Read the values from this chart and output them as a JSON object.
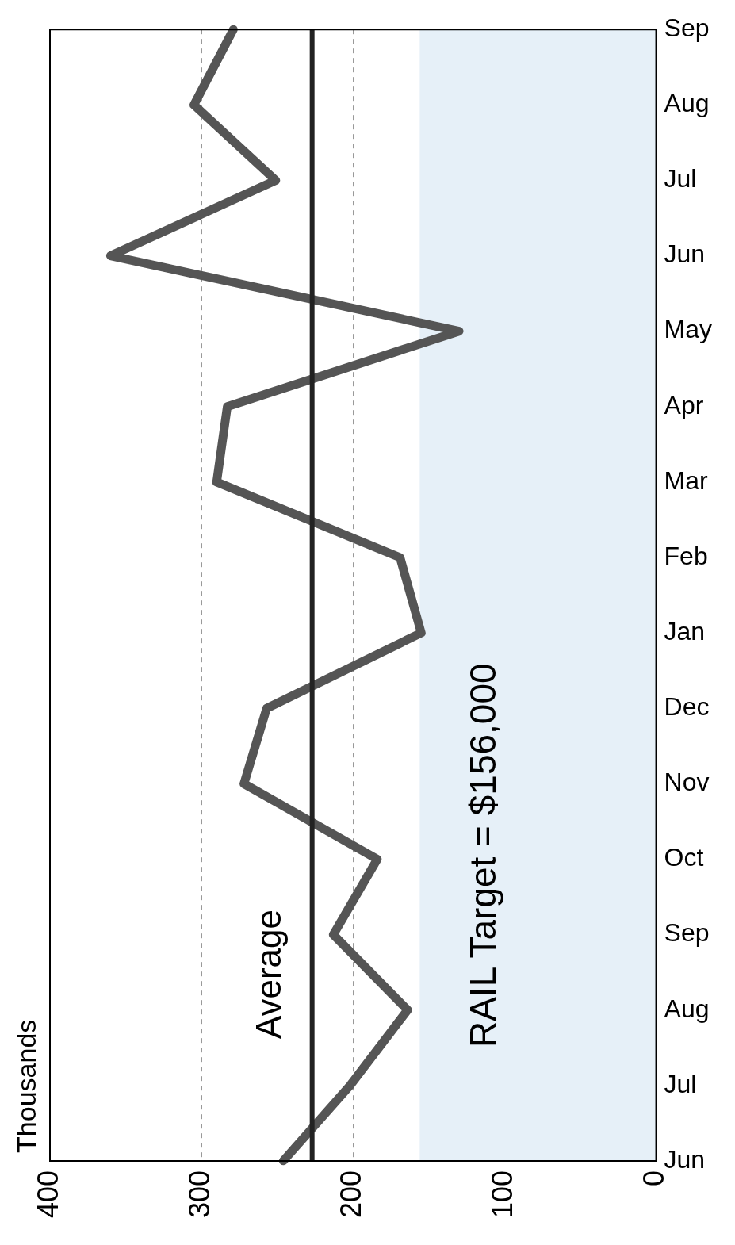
{
  "chart_data": {
    "type": "line",
    "orientation": "horizontal",
    "annotations": [
      "Thousands"
    ],
    "categories": [
      "Sep",
      "Aug",
      "Jul",
      "Jun",
      "May",
      "Apr",
      "Mar",
      "Feb",
      "Jan",
      "Dec",
      "Nov",
      "Oct",
      "Sep",
      "Aug",
      "Jul",
      "Jun"
    ],
    "series": [
      {
        "color": "#555555",
        "values": [
          279,
          305,
          251,
          360,
          130,
          283,
          290,
          169,
          155,
          257,
          272,
          184,
          213,
          164,
          202,
          246
        ]
      }
    ],
    "xlim": [
      400,
      0
    ],
    "xticks": [
      400,
      300,
      200,
      100,
      0
    ],
    "grid": "x",
    "legend": false,
    "marker": "none",
    "line_style": "solid",
    "ref_lines": [
      {
        "axis": "x",
        "value": 227,
        "label": "Average",
        "color": "#222222"
      }
    ],
    "bands": [
      {
        "axis": "x",
        "from": 0,
        "to": 156,
        "label": "RAIL Target = $156,000",
        "color": "#e6f0f8"
      }
    ]
  }
}
